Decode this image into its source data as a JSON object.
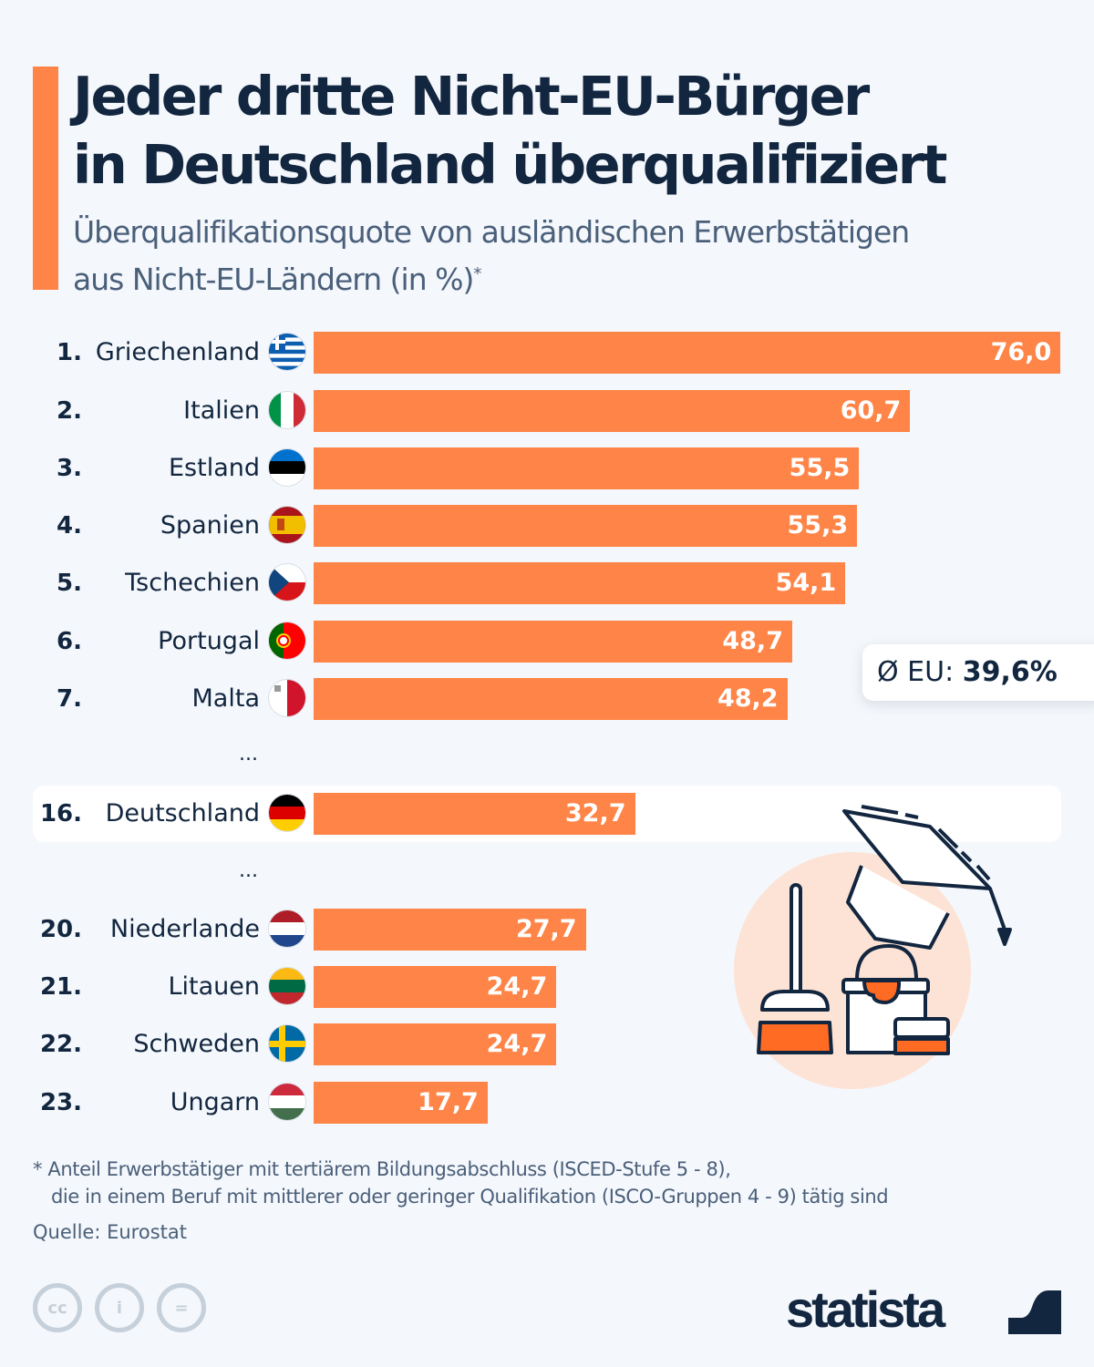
{
  "header": {
    "title_line1": "Jeder dritte Nicht-EU-Bürger",
    "title_line2": "in Deutschland überqualifiziert",
    "subtitle_line1": "Überqualifikationsquote von ausländischen Erwerbstätigen",
    "subtitle_line2": "aus Nicht-EU-Ländern (in %)",
    "subtitle_mark": "*"
  },
  "eu_average": {
    "prefix": "Ø EU:",
    "value": "39,6%"
  },
  "ellipsis": "...",
  "chart_data": {
    "type": "bar",
    "orientation": "horizontal",
    "title": "Jeder dritte Nicht-EU-Bürger in Deutschland überqualifiziert",
    "subtitle": "Überqualifikationsquote von ausländischen Erwerbstätigen aus Nicht-EU-Ländern (in %)*",
    "xlabel": "",
    "ylabel": "",
    "xlim": [
      0,
      76
    ],
    "grid": false,
    "categories": [
      "Griechenland",
      "Italien",
      "Estland",
      "Spanien",
      "Tschechien",
      "Portugal",
      "Malta",
      "Deutschland",
      "Niederlande",
      "Litauen",
      "Schweden",
      "Ungarn"
    ],
    "ranks": [
      "1.",
      "2.",
      "3.",
      "4.",
      "5.",
      "6.",
      "7.",
      "16.",
      "20.",
      "21.",
      "22.",
      "23."
    ],
    "values": [
      76.0,
      60.7,
      55.5,
      55.3,
      54.1,
      48.7,
      48.2,
      32.7,
      27.7,
      24.7,
      24.7,
      17.7
    ],
    "value_labels": [
      "76,0",
      "60,7",
      "55,5",
      "55,3",
      "54,1",
      "48,7",
      "48,2",
      "32,7",
      "27,7",
      "24,7",
      "24,7",
      "17,7"
    ],
    "flags": [
      "greece-flag",
      "italy-flag",
      "estonia-flag",
      "spain-flag",
      "czechia-flag",
      "portugal-flag",
      "malta-flag",
      "germany-flag",
      "netherlands-flag",
      "lithuania-flag",
      "sweden-flag",
      "hungary-flag"
    ],
    "highlighted": "Deutschland",
    "reference": {
      "label": "Ø EU",
      "value": 39.6
    },
    "bar_color": "#ff8447"
  },
  "footer": {
    "note_line1": "* Anteil Erwerbstätiger mit tertiärem Bildungsabschluss (ISCED-Stufe 5 - 8),",
    "note_line2": "die in einem Beruf mit mittlerer oder geringer Qualifikation (ISCO-Gruppen 4 - 9) tätig sind",
    "source": "Quelle: Eurostat",
    "cc_labels": [
      "cc",
      "i",
      "="
    ],
    "brand": "statista"
  },
  "colors": {
    "accent": "#ff8447",
    "text": "#12263f",
    "muted": "#4a5f7a",
    "background": "#f4f7fb"
  }
}
